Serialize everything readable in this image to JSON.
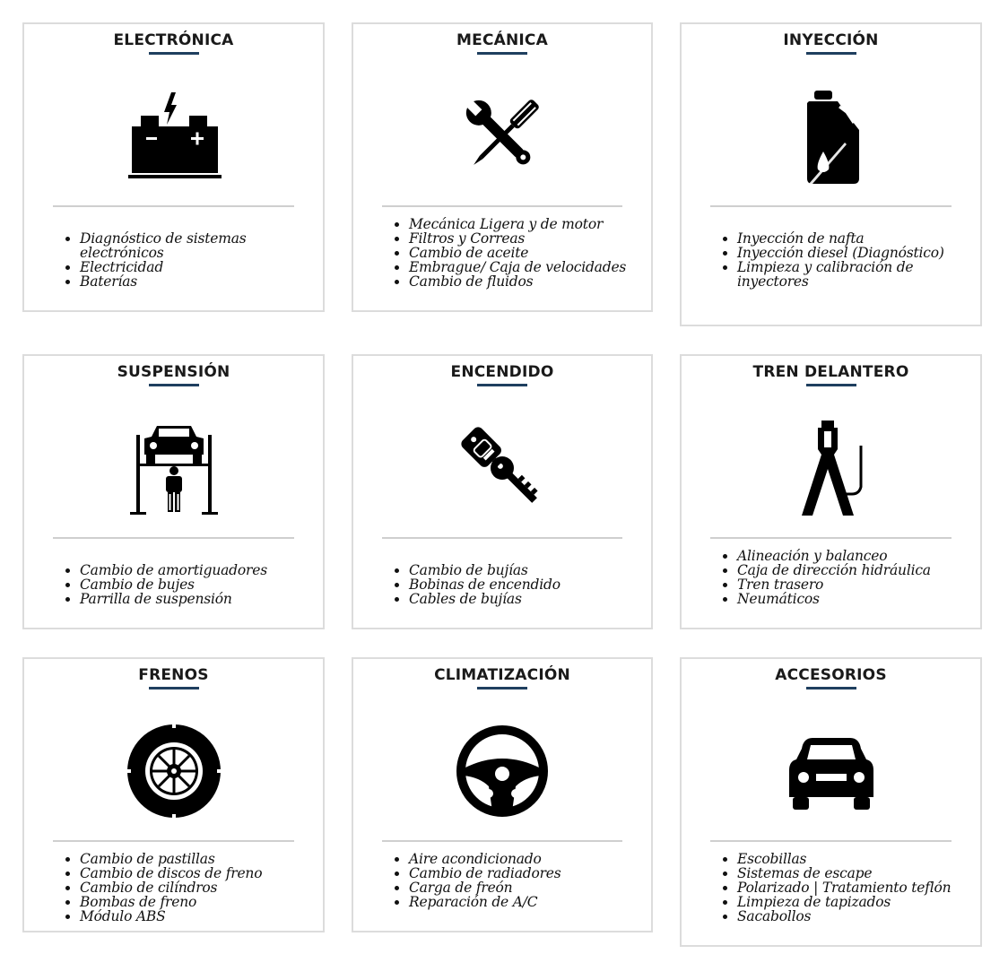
{
  "cards": [
    {
      "title": "ELECTRÓNICA",
      "icon": "battery-icon",
      "items": [
        "Diagnóstico de sistemas electrónicos",
        "Electricidad",
        "Baterías"
      ]
    },
    {
      "title": "MECÁNICA",
      "icon": "wrench-screwdriver-icon",
      "items": [
        "Mecánica Ligera y de motor",
        "Filtros y Correas",
        "Cambio de aceite",
        "Embrague/ Caja de velocidades",
        "Cambio de fluidos"
      ]
    },
    {
      "title": "INYECCIÓN",
      "icon": "oil-can-icon",
      "items": [
        "Inyección de nafta",
        "Inyección diesel (Diagnóstico)",
        "Limpieza y calibración de inyectores"
      ]
    },
    {
      "title": "SUSPENSIÓN",
      "icon": "car-lift-icon",
      "items": [
        "Cambio de amortiguadores",
        "Cambio de bujes",
        "Parrilla de suspensión"
      ]
    },
    {
      "title": "ENCENDIDO",
      "icon": "car-key-icon",
      "items": [
        "Cambio de bujías",
        "Bobinas de encendido",
        "Cables de bujías"
      ]
    },
    {
      "title": "TREN DELANTERO",
      "icon": "jumper-clamp-icon",
      "items": [
        "Alineación y balanceo",
        "Caja de dirección hidráulica",
        "Tren trasero",
        "Neumáticos"
      ]
    },
    {
      "title": "FRENOS",
      "icon": "tire-icon",
      "items": [
        "Cambio de pastillas",
        "Cambio de discos de freno",
        "Cambio de cilíndros",
        "Bombas de freno",
        "Módulo ABS"
      ]
    },
    {
      "title": "CLIMATIZACIÓN",
      "icon": "steering-wheel-icon",
      "items": [
        "Aire acondicionado",
        "Cambio de radiadores",
        "Carga de freón",
        "Reparación de A/C"
      ]
    },
    {
      "title": "ACCESORIOS",
      "icon": "car-front-icon",
      "items": [
        "Escobillas",
        "Sistemas de escape",
        "Polarizado | Tratamiento teflón",
        "Limpieza de tapizados",
        "Sacabollos"
      ]
    }
  ]
}
